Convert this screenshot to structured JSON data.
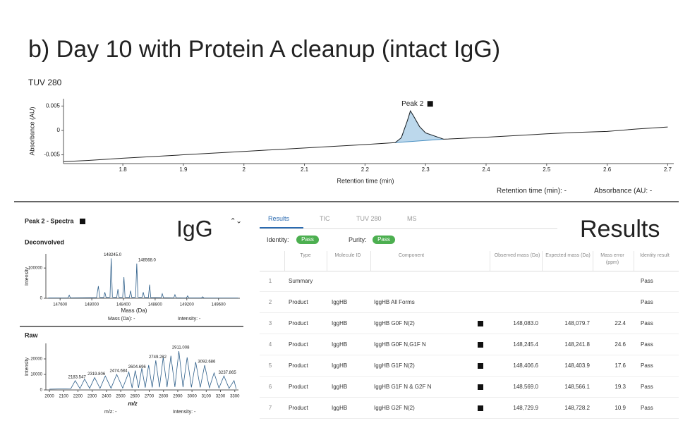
{
  "title": "b) Day 10 with Protein A cleanup (intact IgG)",
  "chart_data": [
    {
      "type": "line",
      "title": "TUV 280",
      "x_label": "Retention time (min)",
      "y_label": "Absorbance (AU)",
      "xlim": [
        1.702,
        2.71
      ],
      "xticks": [
        1.8,
        1.9,
        2,
        2.1,
        2.2,
        2.3,
        2.4,
        2.5,
        2.6,
        2.7
      ],
      "ylim": [
        -0.0068,
        0.0065
      ],
      "yticks": [
        -0.005,
        0,
        0.005
      ],
      "x": [
        1.702,
        1.75,
        1.8,
        1.9,
        2.0,
        2.1,
        2.2,
        2.25,
        2.26,
        2.27,
        2.275,
        2.28,
        2.29,
        2.3,
        2.33,
        2.4,
        2.5,
        2.55,
        2.6,
        2.65,
        2.7
      ],
      "series": [
        {
          "name": "TUV 280",
          "color": "#222222",
          "values": [
            -0.0064,
            -0.0061,
            -0.0057,
            -0.005,
            -0.0043,
            -0.0036,
            -0.0029,
            -0.0025,
            -0.0015,
            0.002,
            0.004,
            0.003,
            0.0008,
            -0.0005,
            -0.0018,
            -0.0014,
            -0.0007,
            -0.0004,
            -0.0002,
            0.0003,
            0.0007
          ]
        }
      ],
      "peak_label": "Peak 2",
      "readouts": [
        "Retention time (min): -",
        "Absorbance (AU: -"
      ]
    },
    {
      "type": "line",
      "title": "Deconvolved",
      "x_label": "Mass (Da)",
      "y_label": "Intensity",
      "xlim": [
        147420,
        149870
      ],
      "xticks": [
        147600,
        148000,
        148400,
        148800,
        149200,
        149600
      ],
      "ylim": [
        0,
        147000
      ],
      "yticks": [
        0,
        100000
      ],
      "x": [
        147450,
        147700,
        147715,
        147730,
        148060,
        148083,
        148100,
        148150,
        148165,
        148180,
        148230,
        148245,
        148260,
        148315,
        148330,
        148345,
        148390,
        148406,
        148420,
        148475,
        148490,
        148505,
        148553,
        148568,
        148583,
        148635,
        148650,
        148665,
        148715,
        148730,
        148745,
        148875,
        148890,
        148905,
        149035,
        149050,
        149065,
        149195,
        149210,
        149225,
        149385,
        149400,
        149415,
        149850
      ],
      "series": [
        {
          "name": "Deconvolved",
          "color": "#2e5f8a",
          "values": [
            1000,
            1500,
            10000,
            1500,
            2000,
            40000,
            3000,
            2500,
            20000,
            3000,
            4000,
            132000,
            4000,
            3000,
            30000,
            3000,
            3500,
            70000,
            3500,
            3000,
            25000,
            3000,
            4000,
            115000,
            4000,
            3000,
            20000,
            3000,
            2500,
            45000,
            2500,
            2000,
            15000,
            2000,
            1500,
            12000,
            1500,
            1200,
            8000,
            1200,
            1000,
            5000,
            1000,
            800
          ]
        }
      ],
      "peak_labels": [
        {
          "value": 148245,
          "label": "148245.0"
        },
        {
          "value": 148568,
          "label": "148568.0"
        }
      ],
      "readouts": [
        "Mass (Da): -",
        "Intensity: -"
      ]
    },
    {
      "type": "line",
      "title": "Raw",
      "x_label": "m/z",
      "y_label": "Intensity",
      "xlim": [
        1975,
        3326
      ],
      "xticks": [
        2000,
        2100,
        2200,
        2300,
        2400,
        2500,
        2600,
        2700,
        2800,
        2900,
        3000,
        3100,
        3200,
        3300
      ],
      "ylim": [
        0,
        30000
      ],
      "yticks": [
        0,
        10000,
        20000
      ],
      "x": [
        2000,
        2150,
        2181,
        2214,
        2247,
        2282,
        2317,
        2355,
        2392,
        2432,
        2472,
        2514,
        2557,
        2580,
        2602,
        2625,
        2648,
        2672,
        2696,
        2721,
        2746,
        2772,
        2798,
        2825,
        2852,
        2880,
        2908,
        2937,
        2966,
        2996,
        3026,
        3058,
        3089,
        3122,
        3155,
        3189,
        3224,
        3260,
        3295,
        3310
      ],
      "series": [
        {
          "name": "Raw",
          "color": "#2e5f8a",
          "values": [
            500,
            800,
            6000,
            900,
            7000,
            1000,
            8000,
            1000,
            9000,
            1100,
            10000,
            1200,
            11500,
            1300,
            12500,
            1400,
            14000,
            1500,
            16000,
            1600,
            19000,
            1700,
            21000,
            1800,
            22000,
            1900,
            25000,
            1800,
            21000,
            1700,
            18000,
            1600,
            16000,
            1400,
            11000,
            1200,
            9000,
            1000,
            6000,
            600
          ]
        }
      ],
      "peak_labels": [
        2183.547,
        2319.806,
        2474.684,
        2604.696,
        2749.282,
        2911.008,
        3092.686,
        3237.865
      ],
      "readouts": [
        "m/z: -",
        "Intensity: -"
      ]
    }
  ],
  "spectra_header": "Peak 2 - Spectra",
  "overlay_left": "IgG",
  "overlay_right": "Results",
  "tabs": [
    "Results",
    "TIC",
    "TUV 280",
    "MS"
  ],
  "status": {
    "identity_label": "Identity:",
    "identity": "Pass",
    "purity_label": "Purity:",
    "purity": "Pass"
  },
  "table": {
    "columns": [
      "Type",
      "Molecule ID",
      "Component",
      "Observed mass (Da)",
      "Expected mass (Da)",
      "Mass error (ppm)",
      "Identity result"
    ],
    "rows": [
      {
        "index": "1",
        "type": "Summary",
        "result": "Pass"
      },
      {
        "index": "2",
        "type": "Product",
        "molecule": "IggHB",
        "component": "IggHB All Forms",
        "result": "Pass"
      },
      {
        "index": "3",
        "type": "Product",
        "molecule": "IggHB",
        "component": "IggHB G0F N(2)",
        "observed": "148,083.0",
        "expected": "148,079.7",
        "error": "22.4",
        "result": "Pass"
      },
      {
        "index": "4",
        "type": "Product",
        "molecule": "IggHB",
        "component": "IggHB G0F N,G1F N",
        "observed": "148,245.4",
        "expected": "148,241.8",
        "error": "24.6",
        "result": "Pass"
      },
      {
        "index": "5",
        "type": "Product",
        "molecule": "IggHB",
        "component": "IggHB G1F N(2)",
        "observed": "148,406.6",
        "expected": "148,403.9",
        "error": "17.6",
        "result": "Pass"
      },
      {
        "index": "6",
        "type": "Product",
        "molecule": "IggHB",
        "component": "IggHB G1F N & G2F N",
        "observed": "148,569.0",
        "expected": "148,566.1",
        "error": "19.3",
        "result": "Pass"
      },
      {
        "index": "7",
        "type": "Product",
        "molecule": "IggHB",
        "component": "IggHB G2F N(2)",
        "observed": "148,729.9",
        "expected": "148,728.2",
        "error": "10.9",
        "result": "Pass"
      }
    ]
  }
}
